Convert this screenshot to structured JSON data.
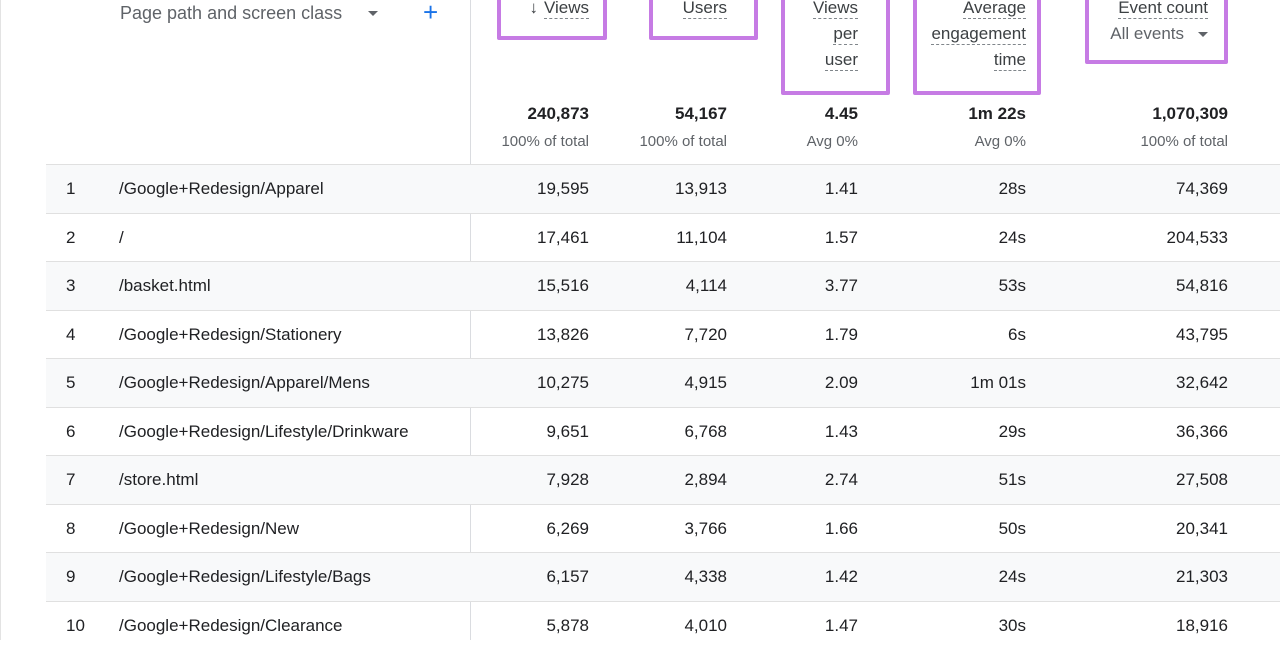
{
  "dimension": {
    "title": "Page path and screen class",
    "add_icon": "plus-icon"
  },
  "columns": {
    "views": {
      "label": "Views",
      "sort_icon": "arrow-down-icon",
      "total": "240,873",
      "total_sub": "100% of total"
    },
    "users": {
      "label": "Users",
      "total": "54,167",
      "total_sub": "100% of total"
    },
    "views_per_user": {
      "label_line1": "Views",
      "label_line2": "per",
      "label_line3": "user",
      "total": "4.45",
      "total_sub": "Avg 0%"
    },
    "avg_engagement": {
      "label_line1": "Average",
      "label_line2": "engagement",
      "label_line3": "time",
      "total": "1m 22s",
      "total_sub": "Avg 0%"
    },
    "event_count": {
      "label": "Event count",
      "selector": "All events",
      "total": "1,070,309",
      "total_sub": "100% of total"
    }
  },
  "highlight_color": "#c67be4",
  "accent_color": "#1a73e8",
  "rows": [
    {
      "idx": "1",
      "path": "/Google+Redesign/Apparel",
      "views": "19,595",
      "users": "13,913",
      "vpu": "1.41",
      "eng": "28s",
      "events": "74,369"
    },
    {
      "idx": "2",
      "path": "/",
      "views": "17,461",
      "users": "11,104",
      "vpu": "1.57",
      "eng": "24s",
      "events": "204,533"
    },
    {
      "idx": "3",
      "path": "/basket.html",
      "views": "15,516",
      "users": "4,114",
      "vpu": "3.77",
      "eng": "53s",
      "events": "54,816"
    },
    {
      "idx": "4",
      "path": "/Google+Redesign/Stationery",
      "views": "13,826",
      "users": "7,720",
      "vpu": "1.79",
      "eng": "6s",
      "events": "43,795"
    },
    {
      "idx": "5",
      "path": "/Google+Redesign/Apparel/Mens",
      "views": "10,275",
      "users": "4,915",
      "vpu": "2.09",
      "eng": "1m 01s",
      "events": "32,642"
    },
    {
      "idx": "6",
      "path": "/Google+Redesign/Lifestyle/Drinkware",
      "views": "9,651",
      "users": "6,768",
      "vpu": "1.43",
      "eng": "29s",
      "events": "36,366"
    },
    {
      "idx": "7",
      "path": "/store.html",
      "views": "7,928",
      "users": "2,894",
      "vpu": "2.74",
      "eng": "51s",
      "events": "27,508"
    },
    {
      "idx": "8",
      "path": "/Google+Redesign/New",
      "views": "6,269",
      "users": "3,766",
      "vpu": "1.66",
      "eng": "50s",
      "events": "20,341"
    },
    {
      "idx": "9",
      "path": "/Google+Redesign/Lifestyle/Bags",
      "views": "6,157",
      "users": "4,338",
      "vpu": "1.42",
      "eng": "24s",
      "events": "21,303"
    },
    {
      "idx": "10",
      "path": "/Google+Redesign/Clearance",
      "views": "5,878",
      "users": "4,010",
      "vpu": "1.47",
      "eng": "30s",
      "events": "18,916"
    }
  ]
}
